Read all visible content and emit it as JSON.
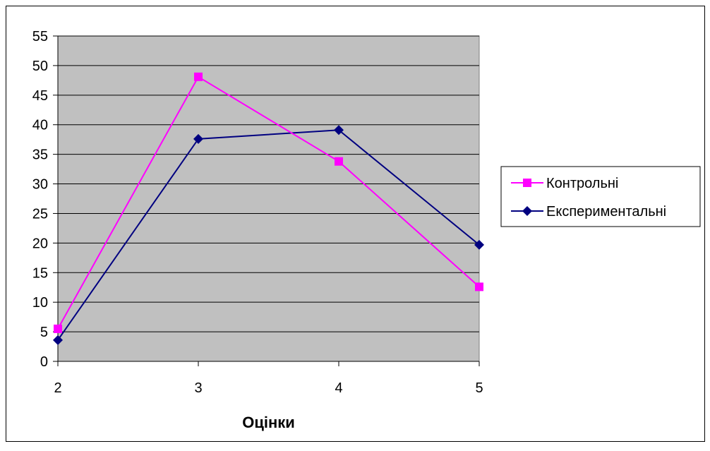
{
  "chart_data": {
    "type": "line",
    "title": "",
    "xlabel": "Оцінки",
    "ylabel": "",
    "categories": [
      "2",
      "3",
      "4",
      "5"
    ],
    "ylim": [
      0,
      55
    ],
    "ytick_step": 5,
    "yticks": [
      "0",
      "5",
      "10",
      "15",
      "20",
      "25",
      "30",
      "35",
      "40",
      "45",
      "50",
      "55"
    ],
    "grid": true,
    "plot_background": "#c0c0c0",
    "legend_position": "right",
    "series": [
      {
        "name": "Контрольні",
        "values": [
          5.5,
          48.1,
          33.8,
          12.6
        ],
        "color": "#ff00ff",
        "marker": "square"
      },
      {
        "name": "Експериментальні",
        "values": [
          3.6,
          37.6,
          39.1,
          19.7
        ],
        "color": "#000080",
        "marker": "diamond"
      }
    ]
  }
}
